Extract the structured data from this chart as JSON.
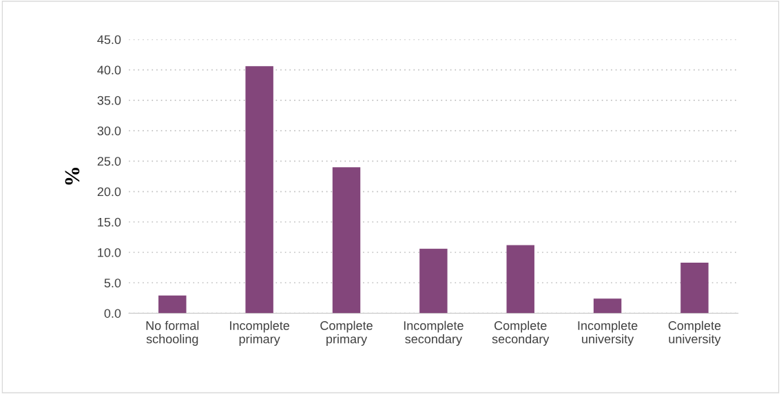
{
  "chart_data": {
    "type": "bar",
    "ylabel": "%",
    "categories": [
      "No formal\nschooling",
      "Incomplete\nprimary",
      "Complete\nprimary",
      "Incomplete\nsecondary",
      "Complete\nsecondary",
      "Incomplete\nuniversity",
      "Complete\nuniversity"
    ],
    "values": [
      2.9,
      40.6,
      24.0,
      10.6,
      11.2,
      2.4,
      8.3
    ],
    "color": "#83467b",
    "ylim": [
      0,
      45
    ],
    "yticks": [
      {
        "value": 0,
        "label": "0.0"
      },
      {
        "value": 5,
        "label": "5.0"
      },
      {
        "value": 10,
        "label": "10.0"
      },
      {
        "value": 15,
        "label": "15.0"
      },
      {
        "value": 20,
        "label": "20.0"
      },
      {
        "value": 25,
        "label": "25.0"
      },
      {
        "value": 30,
        "label": "30.0"
      },
      {
        "value": 35,
        "label": "35.0"
      },
      {
        "value": 40,
        "label": "40.0"
      },
      {
        "value": 45,
        "label": "45.0"
      }
    ],
    "grid": "y"
  }
}
